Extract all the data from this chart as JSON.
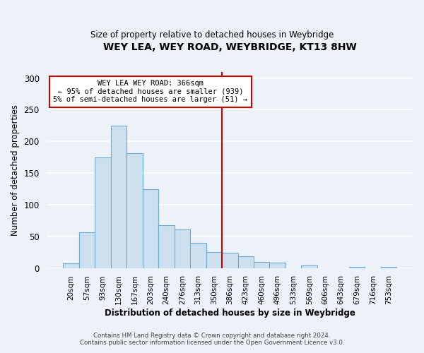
{
  "title": "WEY LEA, WEY ROAD, WEYBRIDGE, KT13 8HW",
  "subtitle": "Size of property relative to detached houses in Weybridge",
  "xlabel": "Distribution of detached houses by size in Weybridge",
  "ylabel": "Number of detached properties",
  "bar_labels": [
    "20sqm",
    "57sqm",
    "93sqm",
    "130sqm",
    "167sqm",
    "203sqm",
    "240sqm",
    "276sqm",
    "313sqm",
    "350sqm",
    "386sqm",
    "423sqm",
    "460sqm",
    "496sqm",
    "533sqm",
    "569sqm",
    "606sqm",
    "643sqm",
    "679sqm",
    "716sqm",
    "753sqm"
  ],
  "bar_values": [
    7,
    56,
    175,
    225,
    181,
    124,
    68,
    61,
    40,
    25,
    24,
    19,
    10,
    9,
    0,
    4,
    0,
    0,
    2,
    0,
    2
  ],
  "bar_color": "#cde0f0",
  "bar_edge_color": "#6aaad4",
  "vline_x_idx": 10,
  "vline_color": "#cc0000",
  "annotation_title": "WEY LEA WEY ROAD: 366sqm",
  "annotation_line1": "← 95% of detached houses are smaller (939)",
  "annotation_line2": "5% of semi-detached houses are larger (51) →",
  "annotation_box_color": "#ffffff",
  "annotation_box_edge": "#cc0000",
  "footer1": "Contains HM Land Registry data © Crown copyright and database right 2024.",
  "footer2": "Contains public sector information licensed under the Open Government Licence v3.0.",
  "ylim": [
    0,
    310
  ],
  "background_color": "#edf2f9"
}
